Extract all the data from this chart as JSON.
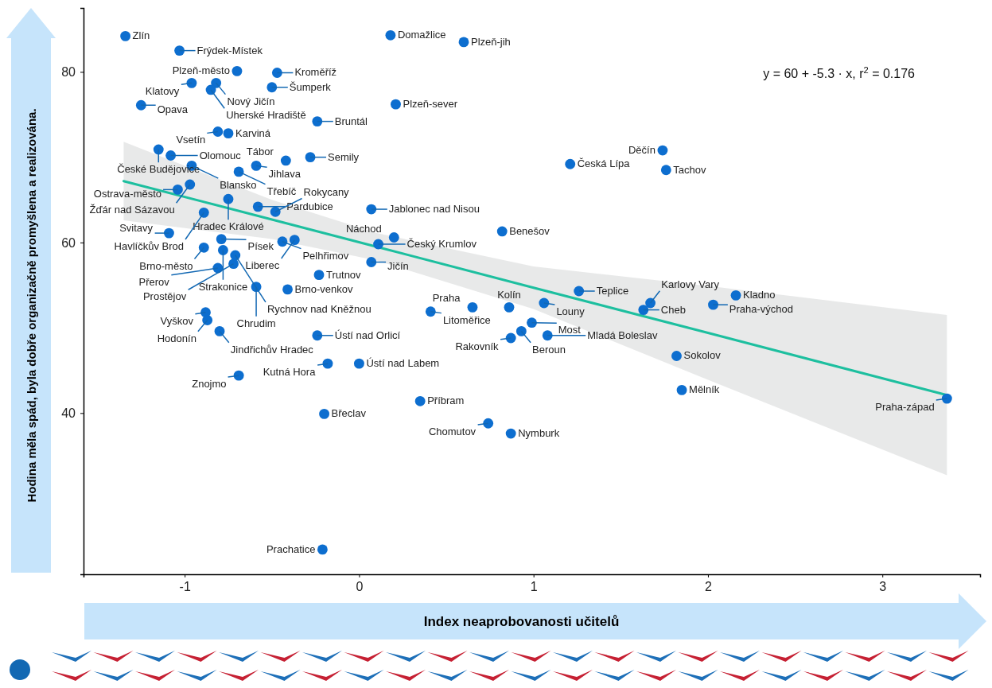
{
  "chart_data": {
    "type": "scatter",
    "xlabel": "Index neaprobovanosti učitelů",
    "ylabel": "Hodina měla spád, byla dobře organizačně promyšlena a realizována.",
    "xlim": [
      -1.58,
      3.56
    ],
    "ylim": [
      21.1,
      87.5
    ],
    "xticks": [
      -1,
      0,
      1,
      2,
      3
    ],
    "yticks": [
      40,
      60,
      80
    ],
    "grid": false,
    "annotations": [
      "y = 60 + -5.3 · x,  r$^{2}$ = 0.176"
    ],
    "series": [
      {
        "marker": "circle",
        "color": "#0d6ecf",
        "x": [
          -1.34,
          -1.03,
          -0.7,
          -0.47,
          -0.96,
          -0.82,
          -0.85,
          -0.5,
          -1.25,
          -0.24,
          -0.81,
          -0.75,
          -1.15,
          -1.08,
          -0.28,
          -0.42,
          -0.59,
          -0.96,
          -0.69,
          -0.97,
          -1.04,
          -0.75,
          -0.58,
          -0.48,
          -0.89,
          0.07,
          -1.09,
          -0.79,
          -0.44,
          -0.37,
          -0.89,
          -0.78,
          -0.71,
          -0.72,
          -0.81,
          -0.59,
          -0.41,
          -0.23,
          -0.88,
          -0.87,
          -0.8,
          -0.24,
          -0.18,
          0.0,
          -0.69,
          -0.2,
          -0.21,
          0.11,
          0.07,
          0.2,
          0.18,
          0.6,
          0.21,
          1.21,
          0.82,
          0.41,
          0.65,
          0.86,
          1.06,
          1.26,
          0.99,
          0.93,
          0.87,
          1.08,
          0.35,
          0.74,
          0.87,
          1.74,
          1.76,
          1.67,
          1.63,
          2.03,
          2.16,
          1.82,
          1.85,
          3.37
        ],
        "values": [
          84.2,
          82.5,
          80.1,
          79.9,
          78.7,
          78.7,
          77.9,
          78.2,
          76.1,
          74.2,
          73.0,
          72.8,
          70.9,
          70.2,
          70.0,
          69.6,
          69.0,
          69.0,
          68.3,
          66.8,
          66.2,
          65.1,
          64.2,
          63.6,
          63.5,
          63.9,
          61.1,
          60.4,
          60.1,
          60.3,
          59.4,
          59.1,
          58.5,
          57.5,
          57.0,
          54.8,
          54.5,
          56.2,
          51.8,
          50.9,
          49.6,
          49.1,
          45.8,
          45.8,
          44.4,
          39.9,
          24.0,
          59.8,
          57.7,
          60.6,
          84.3,
          83.5,
          76.2,
          69.2,
          61.3,
          51.9,
          52.4,
          52.4,
          52.9,
          54.3,
          50.6,
          49.6,
          48.8,
          49.1,
          41.4,
          38.8,
          37.6,
          70.8,
          68.5,
          52.9,
          52.1,
          52.7,
          53.8,
          46.7,
          42.7,
          41.7
        ],
        "value_labels": [
          "Zlín",
          "Frýdek-Místek",
          "Plzeň-město",
          "Kroměříž",
          "Klatovy",
          "Nový Jičín",
          "Uherské Hradiště",
          "Šumperk",
          "Opava",
          "Bruntál",
          "Vsetín",
          "Karviná",
          "České Budějovice",
          "Olomouc",
          "Semily",
          "Tábor",
          "Jihlava",
          "Blansko",
          "Třebíč",
          "Žďár nad Sázavou",
          "Ostrava-město",
          "Hradec Králové",
          "Pardubice",
          "Rokycany",
          "Havlíčkův Brod",
          "Jablonec nad Nisou",
          "Svitavy",
          "Písek",
          "Pelhřimov",
          "Liberec",
          "Brno-město",
          "Strakonice",
          "Rychnov nad Kněžnou",
          "Prostějov",
          "Přerov",
          "Chrudim",
          "Brno-venkov",
          "Trutnov",
          "Vyškov",
          "Hodonín",
          "Jindřichův Hradec",
          "Ústí nad Orlicí",
          "Kutná Hora",
          "Ústí nad Labem",
          "Znojmo",
          "Břeclav",
          "Prachatice",
          "Český Krumlov",
          "Jičín",
          "Náchod",
          "Domažlice",
          "Plzeň-jih",
          "Plzeň-sever",
          "Česká Lípa",
          "Benešov",
          "Litoměřice",
          "Praha",
          "Kolín",
          "Louny",
          "Teplice",
          "Most",
          "Beroun",
          "Rakovník",
          "Mladá Boleslav",
          "Příbram",
          "Chomutov",
          "Nymburk",
          "Děčín",
          "Tachov",
          "Karlovy Vary",
          "Cheb",
          "Praha-východ",
          "Kladno",
          "Sokolov",
          "Mělník",
          "Praha-západ"
        ]
      },
      {
        "type": "line",
        "color": "#1dbf9f",
        "x": [
          -1.35,
          -0.5,
          0.1,
          1,
          2,
          3.37
        ],
        "values": [
          67.2,
          62.7,
          59.5,
          54.7,
          49.4,
          42.1
        ],
        "lower": [
          62.6,
          60.4,
          57.9,
          52.2,
          43.9,
          32.7
        ],
        "upper": [
          71.8,
          65.0,
          61.1,
          57.2,
          54.9,
          51.5
        ]
      }
    ]
  }
}
